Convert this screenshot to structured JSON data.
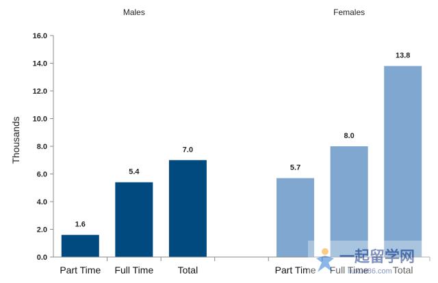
{
  "chart_data": {
    "type": "bar",
    "ylabel": "Thousands",
    "ylim": [
      0,
      16
    ],
    "ytick_step": 2,
    "ytick_labels": [
      "0.0",
      "2.0",
      "4.0",
      "6.0",
      "8.0",
      "10.0",
      "12.0",
      "14.0",
      "16.0"
    ],
    "grid": false,
    "groups": [
      {
        "name": "Males",
        "color": "#004a80",
        "categories": [
          "Part Time",
          "Full Time",
          "Total"
        ],
        "values": [
          1.6,
          5.4,
          7.0
        ],
        "value_labels": [
          "1.6",
          "5.4",
          "7.0"
        ]
      },
      {
        "name": "Females",
        "color": "#7fa7cf",
        "categories": [
          "Part Time",
          "Full Time",
          "Total"
        ],
        "values": [
          5.7,
          8.0,
          13.8
        ],
        "value_labels": [
          "5.7",
          "8.0",
          "13.8"
        ]
      }
    ]
  },
  "watermark": {
    "text": "一起留学网",
    "subtext": "liuxue86.com"
  }
}
